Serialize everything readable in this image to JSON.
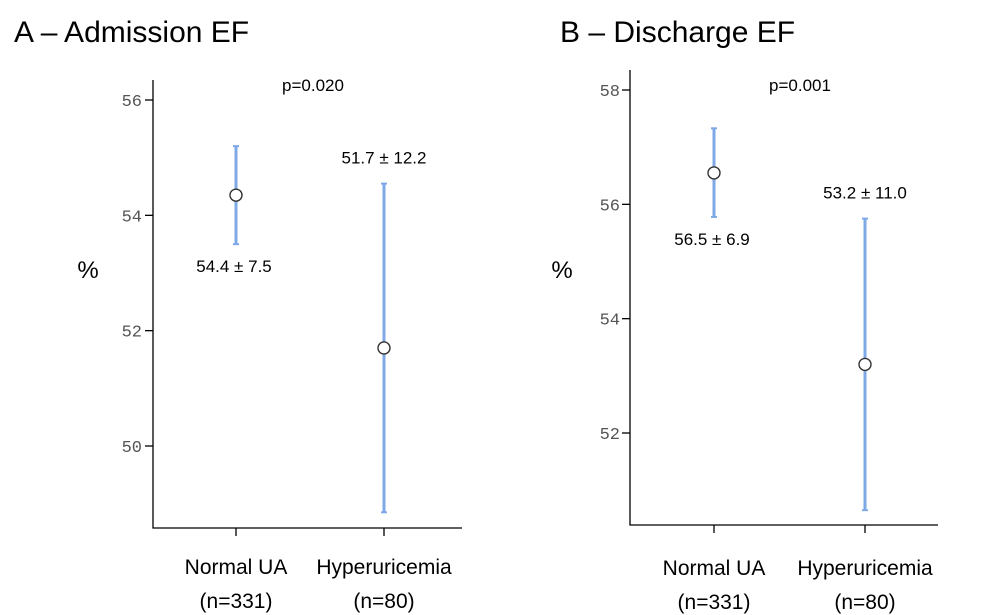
{
  "chart_data": [
    {
      "type": "scatter",
      "title": "A – Admission EF",
      "ylabel": "%",
      "annotation": "p=0.020",
      "ylim": [
        48.2,
        57.0
      ],
      "yticks": [
        50,
        52,
        54,
        56
      ],
      "categories": [
        {
          "name": "Normal UA",
          "n": "(n=331)"
        },
        {
          "name": "Hyperuricemia",
          "n": "(n=80)"
        }
      ],
      "points": [
        {
          "category": "Normal UA",
          "mean": 54.35,
          "lower": 53.5,
          "upper": 55.2,
          "label": "54.4 ± 7.5",
          "label_pos": "below"
        },
        {
          "category": "Hyperuricemia",
          "mean": 51.7,
          "lower": 48.85,
          "upper": 54.55,
          "label": "51.7 ± 12.2",
          "label_pos": "above"
        }
      ]
    },
    {
      "type": "scatter",
      "title": "B – Discharge EF",
      "ylabel": "%",
      "annotation": "p=0.001",
      "ylim": [
        49.8,
        58.5
      ],
      "yticks": [
        52,
        54,
        56,
        58
      ],
      "categories": [
        {
          "name": "Normal UA",
          "n": "(n=331)"
        },
        {
          "name": "Hyperuricemia",
          "n": "(n=80)"
        }
      ],
      "points": [
        {
          "category": "Normal UA",
          "mean": 56.55,
          "lower": 55.78,
          "upper": 57.33,
          "label": "56.5 ± 6.9",
          "label_pos": "below"
        },
        {
          "category": "Hyperuricemia",
          "mean": 53.2,
          "lower": 50.65,
          "upper": 55.75,
          "label": "53.2 ± 11.0",
          "label_pos": "above"
        }
      ]
    }
  ]
}
